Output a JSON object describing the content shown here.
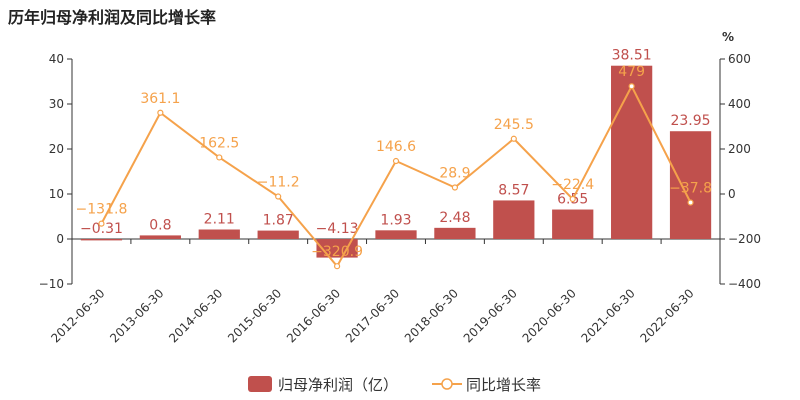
{
  "chart_data": {
    "type": "bar",
    "title": "历年归母净利润及同比增长率",
    "right_unit": "%",
    "categories": [
      "2012-06-30",
      "2013-06-30",
      "2014-06-30",
      "2015-06-30",
      "2016-06-30",
      "2017-06-30",
      "2018-06-30",
      "2019-06-30",
      "2020-06-30",
      "2021-06-30",
      "2022-06-30"
    ],
    "series": [
      {
        "name": "归母净利润（亿）",
        "type": "bar",
        "axis": "left",
        "color": "#c0504d",
        "values": [
          -0.31,
          0.8,
          2.11,
          1.87,
          -4.13,
          1.93,
          2.48,
          8.57,
          6.55,
          38.51,
          23.95
        ],
        "labels": [
          "-0.31",
          "0.8",
          "2.11",
          "1.87",
          "-4.13",
          "1.93",
          "2.48",
          "8.57",
          "6.55",
          "38.51",
          "23.95"
        ]
      },
      {
        "name": "同比增长率",
        "type": "line",
        "axis": "right",
        "color": "#f5a24b",
        "values": [
          -131.8,
          361.1,
          162.5,
          -11.2,
          -320.9,
          146.6,
          28.9,
          245.5,
          -22.4,
          479,
          -37.8
        ],
        "labels": [
          "-131.8",
          "361.1",
          "162.5",
          "-11.2",
          "-320.9",
          "146.6",
          "28.9",
          "245.5",
          "-22.4",
          "479",
          "-37.8"
        ]
      }
    ],
    "ylim_left": [
      -10,
      40
    ],
    "yticks_left": [
      -10,
      0,
      10,
      20,
      30,
      40
    ],
    "ylim_right": [
      -400,
      600
    ],
    "yticks_right": [
      -400,
      -200,
      0,
      200,
      400,
      600
    ],
    "grid": false,
    "legend": "bottom"
  }
}
